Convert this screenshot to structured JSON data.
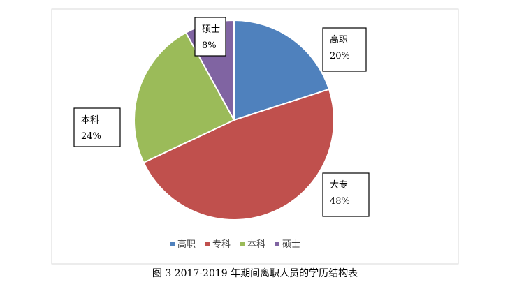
{
  "chart_data": {
    "type": "pie",
    "categories": [
      "高职",
      "专科",
      "本科",
      "硕士"
    ],
    "values": [
      20,
      48,
      24,
      8
    ],
    "value_suffix": "%",
    "callouts": [
      {
        "name": "高职",
        "label": "20%"
      },
      {
        "name": "大专",
        "label": "48%"
      },
      {
        "name": "本科",
        "label": "24%"
      },
      {
        "name": "硕士",
        "label": "8%"
      }
    ],
    "colors": [
      "#4F81BD",
      "#C0504D",
      "#9BBB59",
      "#8064A2"
    ],
    "legend_position": "bottom",
    "start_angle_deg": 0,
    "direction": "clockwise"
  },
  "caption": "图 3   2017-2019 年期间离职人员的学历结构表"
}
